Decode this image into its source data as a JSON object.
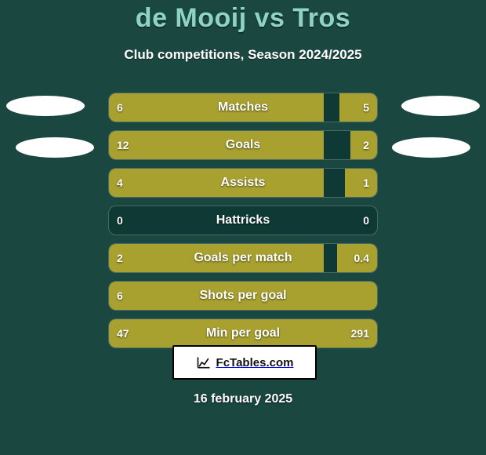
{
  "colors": {
    "background": "#1b4741",
    "accent": "#8fd3c7",
    "bar_fill": "#a9a12f",
    "bar_fill_right": "#a9a12f",
    "row_bg": "#0e3934"
  },
  "title": "de Mooij vs Tros",
  "subtitle": "Club competitions, Season 2024/2025",
  "date": "16 february 2025",
  "badge": {
    "text": "FcTables.com"
  },
  "bars": [
    {
      "label": "Matches",
      "left_val": "6",
      "right_val": "5",
      "left_pct": 80,
      "right_pct": 14
    },
    {
      "label": "Goals",
      "left_val": "12",
      "right_val": "2",
      "left_pct": 80,
      "right_pct": 10
    },
    {
      "label": "Assists",
      "left_val": "4",
      "right_val": "1",
      "left_pct": 80,
      "right_pct": 12
    },
    {
      "label": "Hattricks",
      "left_val": "0",
      "right_val": "0",
      "left_pct": 0,
      "right_pct": 0
    },
    {
      "label": "Goals per match",
      "left_val": "2",
      "right_val": "0.4",
      "left_pct": 80,
      "right_pct": 15
    },
    {
      "label": "Shots per goal",
      "left_val": "6",
      "right_val": "",
      "left_pct": 100,
      "right_pct": 0
    },
    {
      "label": "Min per goal",
      "left_val": "47",
      "right_val": "291",
      "left_pct": 18,
      "right_pct": 82
    }
  ],
  "fontsizes": {
    "title": 34,
    "subtitle": 17,
    "bar_label": 16,
    "bar_val": 14,
    "badge": 15,
    "date": 16
  }
}
